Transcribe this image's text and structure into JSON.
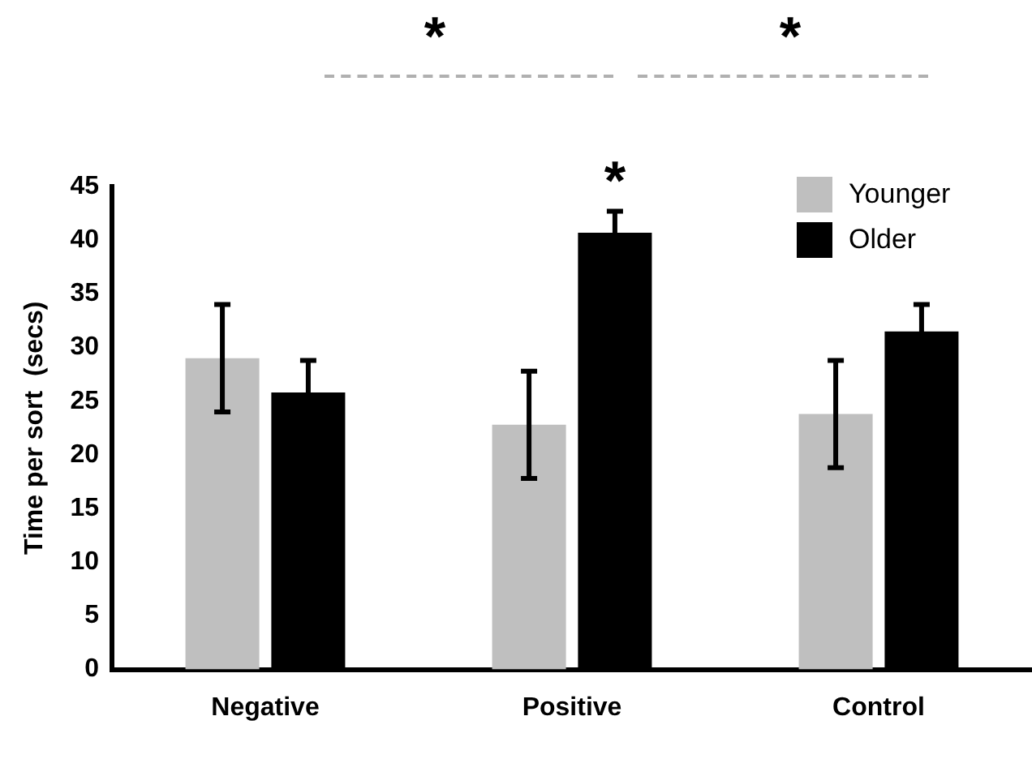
{
  "chart_data": {
    "type": "bar",
    "ylabel": "Time per sort  (secs)",
    "categories": [
      "Negative",
      "Positive",
      "Control"
    ],
    "series": [
      {
        "name": "Younger",
        "color": "#bfbfbf",
        "values": [
          29.0,
          22.8,
          23.8
        ],
        "errors": [
          5,
          5,
          5
        ]
      },
      {
        "name": "Older",
        "color": "#000000",
        "values": [
          25.8,
          40.7,
          31.5
        ],
        "errors": [
          3,
          2,
          2.5
        ]
      }
    ],
    "ylim": [
      0,
      45
    ],
    "yticks": [
      0,
      5,
      10,
      15,
      20,
      25,
      30,
      35,
      40,
      45
    ],
    "grid": false,
    "legend": "top right",
    "annotations": [
      "*",
      "*",
      "*"
    ]
  }
}
